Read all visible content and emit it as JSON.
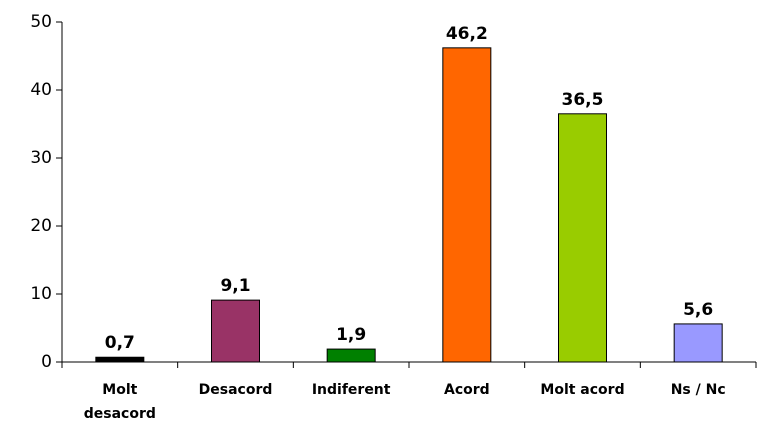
{
  "chart_data": {
    "type": "bar",
    "categories": [
      "Molt desacord",
      "Desacord",
      "Indiferent",
      "Acord",
      "Molt acord",
      "Ns / Nc"
    ],
    "values": [
      0.7,
      9.1,
      1.9,
      46.2,
      36.5,
      5.6
    ],
    "value_labels": [
      "0,7",
      "9,1",
      "1,9",
      "46,2",
      "36,5",
      "5,6"
    ],
    "colors": [
      "#000000",
      "#993366",
      "#008000",
      "#ff6600",
      "#99cc00",
      "#9999ff"
    ],
    "ylim": [
      0,
      50
    ],
    "yticks": [
      0,
      10,
      20,
      30,
      40,
      50
    ],
    "grid": false
  }
}
